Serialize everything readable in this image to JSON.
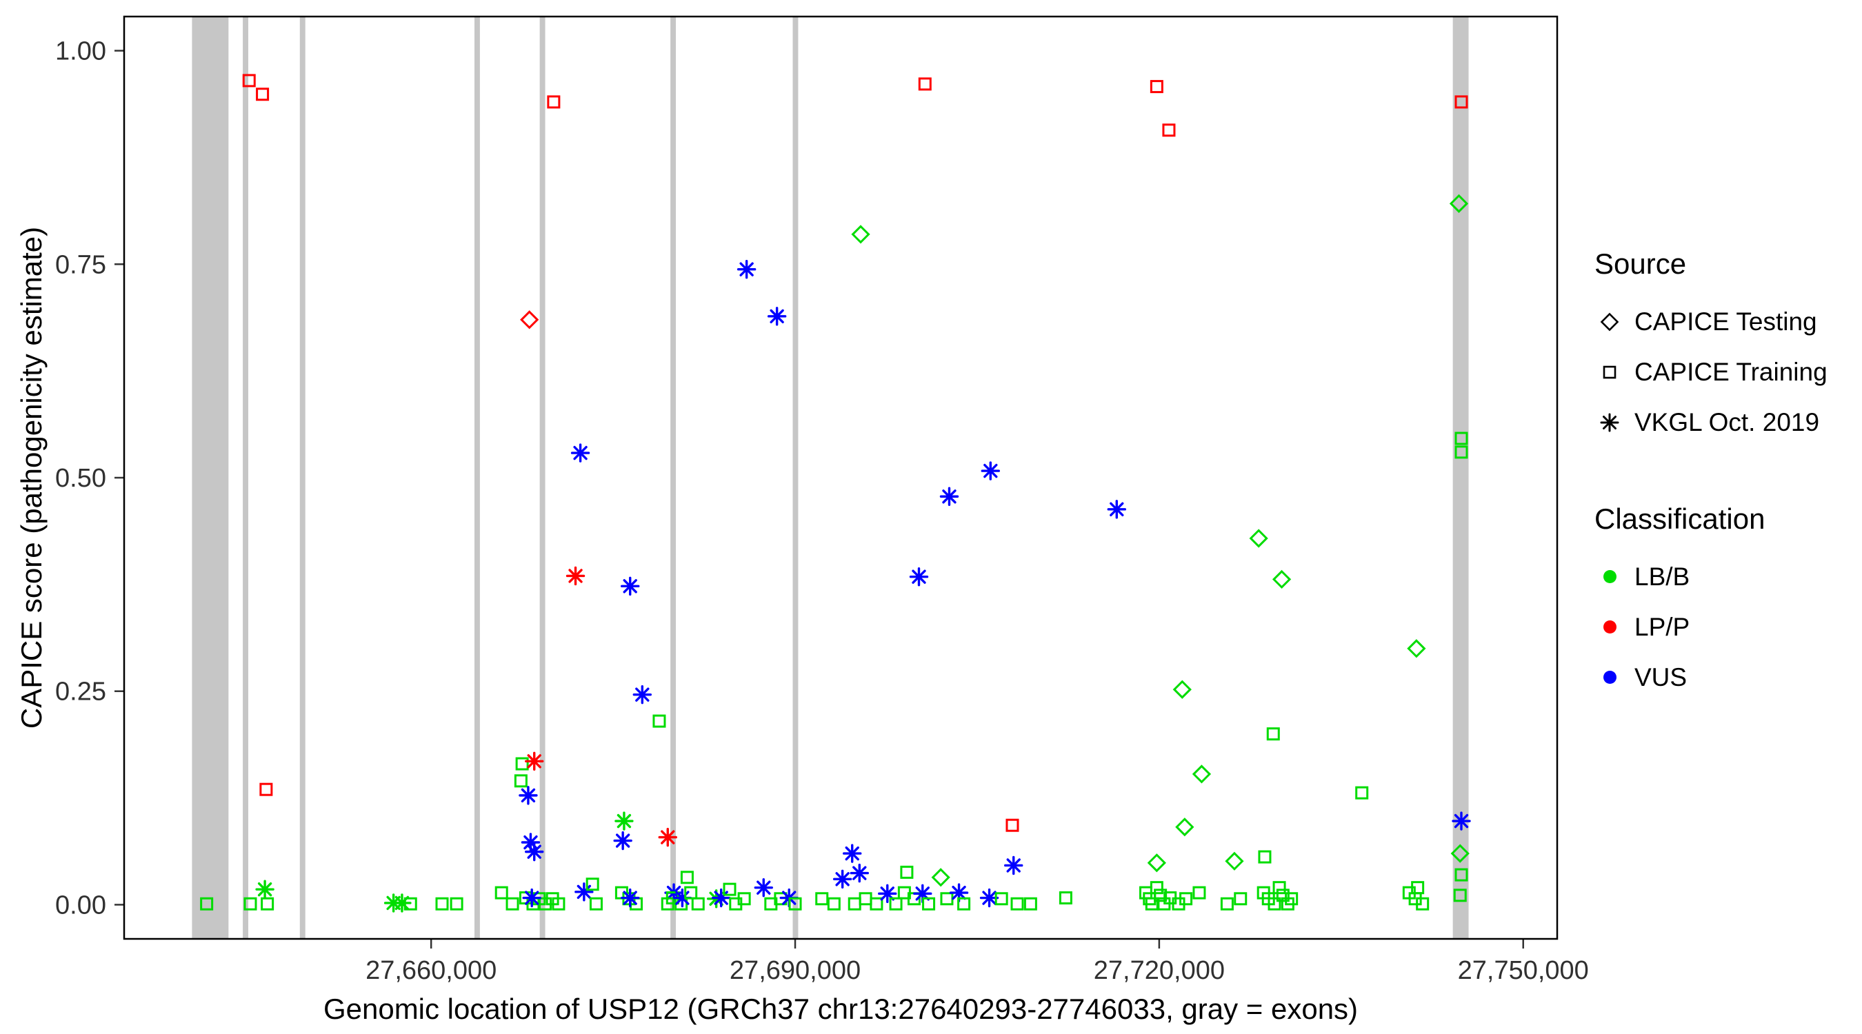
{
  "legend": {
    "source": {
      "title": "Source",
      "items": [
        {
          "label": "CAPICE Testing",
          "shape": "diamond"
        },
        {
          "label": "CAPICE Training",
          "shape": "square"
        },
        {
          "label": "VKGL Oct. 2019",
          "shape": "asterisk"
        }
      ]
    },
    "classification": {
      "title": "Classification",
      "items": [
        {
          "label": "LB/B",
          "color": "#00DC00"
        },
        {
          "label": "LP/P",
          "color": "#FF0000"
        },
        {
          "label": "VUS",
          "color": "#0000FF"
        }
      ]
    }
  },
  "chart_data": {
    "type": "scatter",
    "title": "",
    "xlabel": "Genomic location of USP12 (GRCh37 chr13:27640293-27746033, gray = exons)",
    "ylabel": "CAPICE score (pathogenicity estimate)",
    "xlim": [
      27634700,
      27752800
    ],
    "ylim": [
      -0.04,
      1.04
    ],
    "grid": false,
    "legend_position": "right",
    "background": "#FFFFFF",
    "exon_color": "#C6C6C6",
    "x_ticks": [
      {
        "value": 27660000,
        "label": "27,660,000"
      },
      {
        "value": 27690000,
        "label": "27,690,000"
      },
      {
        "value": 27720000,
        "label": "27,720,000"
      },
      {
        "value": 27750000,
        "label": "27,750,000"
      }
    ],
    "y_ticks": [
      {
        "value": 0,
        "label": "0.00"
      },
      {
        "value": 0.25,
        "label": "0.25"
      },
      {
        "value": 0.5,
        "label": "0.50"
      },
      {
        "value": 0.75,
        "label": "0.75"
      },
      {
        "value": 1,
        "label": "1.00"
      }
    ],
    "exons": [
      [
        27640293,
        27643300
      ],
      [
        27644480,
        27644930
      ],
      [
        27649180,
        27649630
      ],
      [
        27663570,
        27664020
      ],
      [
        27668950,
        27669400
      ],
      [
        27679720,
        27680170
      ],
      [
        27689800,
        27690250
      ],
      [
        27744200,
        27745500
      ]
    ],
    "shape_codes": {
      "d": "CAPICE Testing",
      "s": "CAPICE Training",
      "a": "VKGL Oct. 2019"
    },
    "class_codes": {
      "g": "LB/B",
      "r": "LP/P",
      "b": "VUS"
    },
    "class_colors": {
      "LB/B": "#00DC00",
      "LP/P": "#FF0000",
      "VUS": "#0000FF"
    },
    "points": [
      [
        27641500,
        0.001,
        "s",
        "g"
      ],
      [
        27645000,
        0.965,
        "s",
        "r"
      ],
      [
        27646100,
        0.949,
        "s",
        "r"
      ],
      [
        27646400,
        0.135,
        "s",
        "r"
      ],
      [
        27645100,
        0.001,
        "s",
        "g"
      ],
      [
        27646300,
        0.018,
        "a",
        "g"
      ],
      [
        27646500,
        0.001,
        "s",
        "g"
      ],
      [
        27656900,
        0.002,
        "a",
        "g"
      ],
      [
        27657600,
        0.002,
        "a",
        "g"
      ],
      [
        27658300,
        0.001,
        "s",
        "g"
      ],
      [
        27660900,
        0.001,
        "s",
        "g"
      ],
      [
        27662100,
        0.001,
        "s",
        "g"
      ],
      [
        27665800,
        0.014,
        "s",
        "g"
      ],
      [
        27666700,
        0.001,
        "s",
        "g"
      ],
      [
        27667500,
        0.165,
        "s",
        "g"
      ],
      [
        27667400,
        0.145,
        "s",
        "g"
      ],
      [
        27668500,
        0.168,
        "a",
        "r"
      ],
      [
        27668000,
        0.128,
        "a",
        "b"
      ],
      [
        27668200,
        0.073,
        "a",
        "b"
      ],
      [
        27668500,
        0.062,
        "a",
        "b"
      ],
      [
        27668100,
        0.685,
        "d",
        "r"
      ],
      [
        27667800,
        0.008,
        "s",
        "g"
      ],
      [
        27668400,
        0.001,
        "s",
        "g"
      ],
      [
        27668900,
        0.007,
        "s",
        "g"
      ],
      [
        27669400,
        0.001,
        "s",
        "g"
      ],
      [
        27670000,
        0.007,
        "s",
        "g"
      ],
      [
        27670500,
        0.001,
        "s",
        "g"
      ],
      [
        27668300,
        0.008,
        "a",
        "b"
      ],
      [
        27670100,
        0.94,
        "s",
        "r"
      ],
      [
        27671900,
        0.385,
        "a",
        "r"
      ],
      [
        27672300,
        0.529,
        "a",
        "b"
      ],
      [
        27672600,
        0.015,
        "a",
        "b"
      ],
      [
        27673300,
        0.024,
        "s",
        "g"
      ],
      [
        27673600,
        0.001,
        "s",
        "g"
      ],
      [
        27675900,
        0.098,
        "a",
        "g"
      ],
      [
        27675800,
        0.075,
        "a",
        "b"
      ],
      [
        27676400,
        0.373,
        "a",
        "b"
      ],
      [
        27677400,
        0.246,
        "a",
        "b"
      ],
      [
        27675700,
        0.014,
        "s",
        "g"
      ],
      [
        27676300,
        0.007,
        "s",
        "g"
      ],
      [
        27676900,
        0.001,
        "s",
        "g"
      ],
      [
        27676400,
        0.008,
        "a",
        "b"
      ],
      [
        27678800,
        0.215,
        "s",
        "g"
      ],
      [
        27679500,
        0.079,
        "a",
        "r"
      ],
      [
        27680000,
        0.014,
        "a",
        "b"
      ],
      [
        27679500,
        0.001,
        "s",
        "g"
      ],
      [
        27679900,
        0.008,
        "s",
        "g"
      ],
      [
        27680600,
        0.001,
        "s",
        "g"
      ],
      [
        27680700,
        0.008,
        "a",
        "b"
      ],
      [
        27681100,
        0.032,
        "s",
        "g"
      ],
      [
        27681400,
        0.014,
        "s",
        "g"
      ],
      [
        27682000,
        0.001,
        "s",
        "g"
      ],
      [
        27683500,
        0.007,
        "a",
        "g"
      ],
      [
        27683900,
        0.008,
        "a",
        "b"
      ],
      [
        27684600,
        0.018,
        "s",
        "g"
      ],
      [
        27685100,
        0.001,
        "s",
        "g"
      ],
      [
        27685800,
        0.007,
        "s",
        "g"
      ],
      [
        27686000,
        0.744,
        "a",
        "b"
      ],
      [
        27687400,
        0.02,
        "a",
        "b"
      ],
      [
        27688000,
        0.001,
        "s",
        "g"
      ],
      [
        27688500,
        0.689,
        "a",
        "b"
      ],
      [
        27688800,
        0.007,
        "s",
        "g"
      ],
      [
        27689500,
        0.008,
        "a",
        "b"
      ],
      [
        27690000,
        0.001,
        "s",
        "g"
      ],
      [
        27692200,
        0.007,
        "s",
        "g"
      ],
      [
        27693200,
        0.001,
        "s",
        "g"
      ],
      [
        27693900,
        0.03,
        "a",
        "b"
      ],
      [
        27694700,
        0.06,
        "a",
        "b"
      ],
      [
        27695300,
        0.037,
        "a",
        "b"
      ],
      [
        27695400,
        0.785,
        "d",
        "g"
      ],
      [
        27694900,
        0.001,
        "s",
        "g"
      ],
      [
        27695800,
        0.007,
        "s",
        "g"
      ],
      [
        27696700,
        0.001,
        "s",
        "g"
      ],
      [
        27697600,
        0.013,
        "a",
        "b"
      ],
      [
        27698300,
        0.001,
        "s",
        "g"
      ],
      [
        27699200,
        0.038,
        "s",
        "g"
      ],
      [
        27699000,
        0.014,
        "s",
        "g"
      ],
      [
        27699800,
        0.007,
        "s",
        "g"
      ],
      [
        27700500,
        0.013,
        "a",
        "b"
      ],
      [
        27700700,
        0.961,
        "s",
        "r"
      ],
      [
        27700200,
        0.384,
        "a",
        "b"
      ],
      [
        27701000,
        0.001,
        "s",
        "g"
      ],
      [
        27702000,
        0.032,
        "d",
        "g"
      ],
      [
        27702700,
        0.478,
        "a",
        "b"
      ],
      [
        27702500,
        0.007,
        "s",
        "g"
      ],
      [
        27703500,
        0.014,
        "a",
        "b"
      ],
      [
        27703900,
        0.001,
        "s",
        "g"
      ],
      [
        27706000,
        0.008,
        "a",
        "b"
      ],
      [
        27706100,
        0.508,
        "a",
        "b"
      ],
      [
        27707000,
        0.007,
        "s",
        "g"
      ],
      [
        27707900,
        0.093,
        "s",
        "r"
      ],
      [
        27708000,
        0.046,
        "a",
        "b"
      ],
      [
        27708300,
        0.001,
        "s",
        "g"
      ],
      [
        27709400,
        0.001,
        "s",
        "g"
      ],
      [
        27712300,
        0.008,
        "s",
        "g"
      ],
      [
        27716500,
        0.463,
        "a",
        "b"
      ],
      [
        27718900,
        0.014,
        "s",
        "g"
      ],
      [
        27719200,
        0.007,
        "s",
        "g"
      ],
      [
        27719400,
        0.001,
        "s",
        "g"
      ],
      [
        27719800,
        0.02,
        "s",
        "g"
      ],
      [
        27720100,
        0.011,
        "s",
        "g"
      ],
      [
        27720400,
        0.001,
        "s",
        "g"
      ],
      [
        27720900,
        0.008,
        "s",
        "g"
      ],
      [
        27721600,
        0.001,
        "s",
        "g"
      ],
      [
        27719800,
        0.049,
        "d",
        "g"
      ],
      [
        27722200,
        0.007,
        "s",
        "g"
      ],
      [
        27723300,
        0.014,
        "s",
        "g"
      ],
      [
        27719800,
        0.958,
        "s",
        "r"
      ],
      [
        27720800,
        0.907,
        "s",
        "r"
      ],
      [
        27721900,
        0.252,
        "d",
        "g"
      ],
      [
        27722100,
        0.091,
        "d",
        "g"
      ],
      [
        27723500,
        0.153,
        "d",
        "g"
      ],
      [
        27726200,
        0.051,
        "d",
        "g"
      ],
      [
        27725600,
        0.001,
        "s",
        "g"
      ],
      [
        27726700,
        0.007,
        "s",
        "g"
      ],
      [
        27728200,
        0.429,
        "d",
        "g"
      ],
      [
        27728700,
        0.056,
        "s",
        "g"
      ],
      [
        27729400,
        0.2,
        "s",
        "g"
      ],
      [
        27730100,
        0.381,
        "d",
        "g"
      ],
      [
        27728600,
        0.014,
        "s",
        "g"
      ],
      [
        27729000,
        0.007,
        "s",
        "g"
      ],
      [
        27729500,
        0.001,
        "s",
        "g"
      ],
      [
        27729900,
        0.02,
        "s",
        "g"
      ],
      [
        27730200,
        0.011,
        "s",
        "g"
      ],
      [
        27730600,
        0.001,
        "s",
        "g"
      ],
      [
        27730900,
        0.007,
        "s",
        "g"
      ],
      [
        27736700,
        0.131,
        "s",
        "g"
      ],
      [
        27740600,
        0.014,
        "s",
        "g"
      ],
      [
        27741100,
        0.007,
        "s",
        "g"
      ],
      [
        27741300,
        0.02,
        "s",
        "g"
      ],
      [
        27741700,
        0.001,
        "s",
        "g"
      ],
      [
        27741200,
        0.3,
        "d",
        "g"
      ],
      [
        27744900,
        0.94,
        "s",
        "r"
      ],
      [
        27744700,
        0.821,
        "d",
        "g"
      ],
      [
        27744900,
        0.546,
        "s",
        "g"
      ],
      [
        27744900,
        0.53,
        "s",
        "g"
      ],
      [
        27744900,
        0.098,
        "a",
        "b"
      ],
      [
        27744800,
        0.06,
        "d",
        "g"
      ],
      [
        27744900,
        0.035,
        "s",
        "g"
      ],
      [
        27744800,
        0.011,
        "s",
        "g"
      ]
    ]
  }
}
